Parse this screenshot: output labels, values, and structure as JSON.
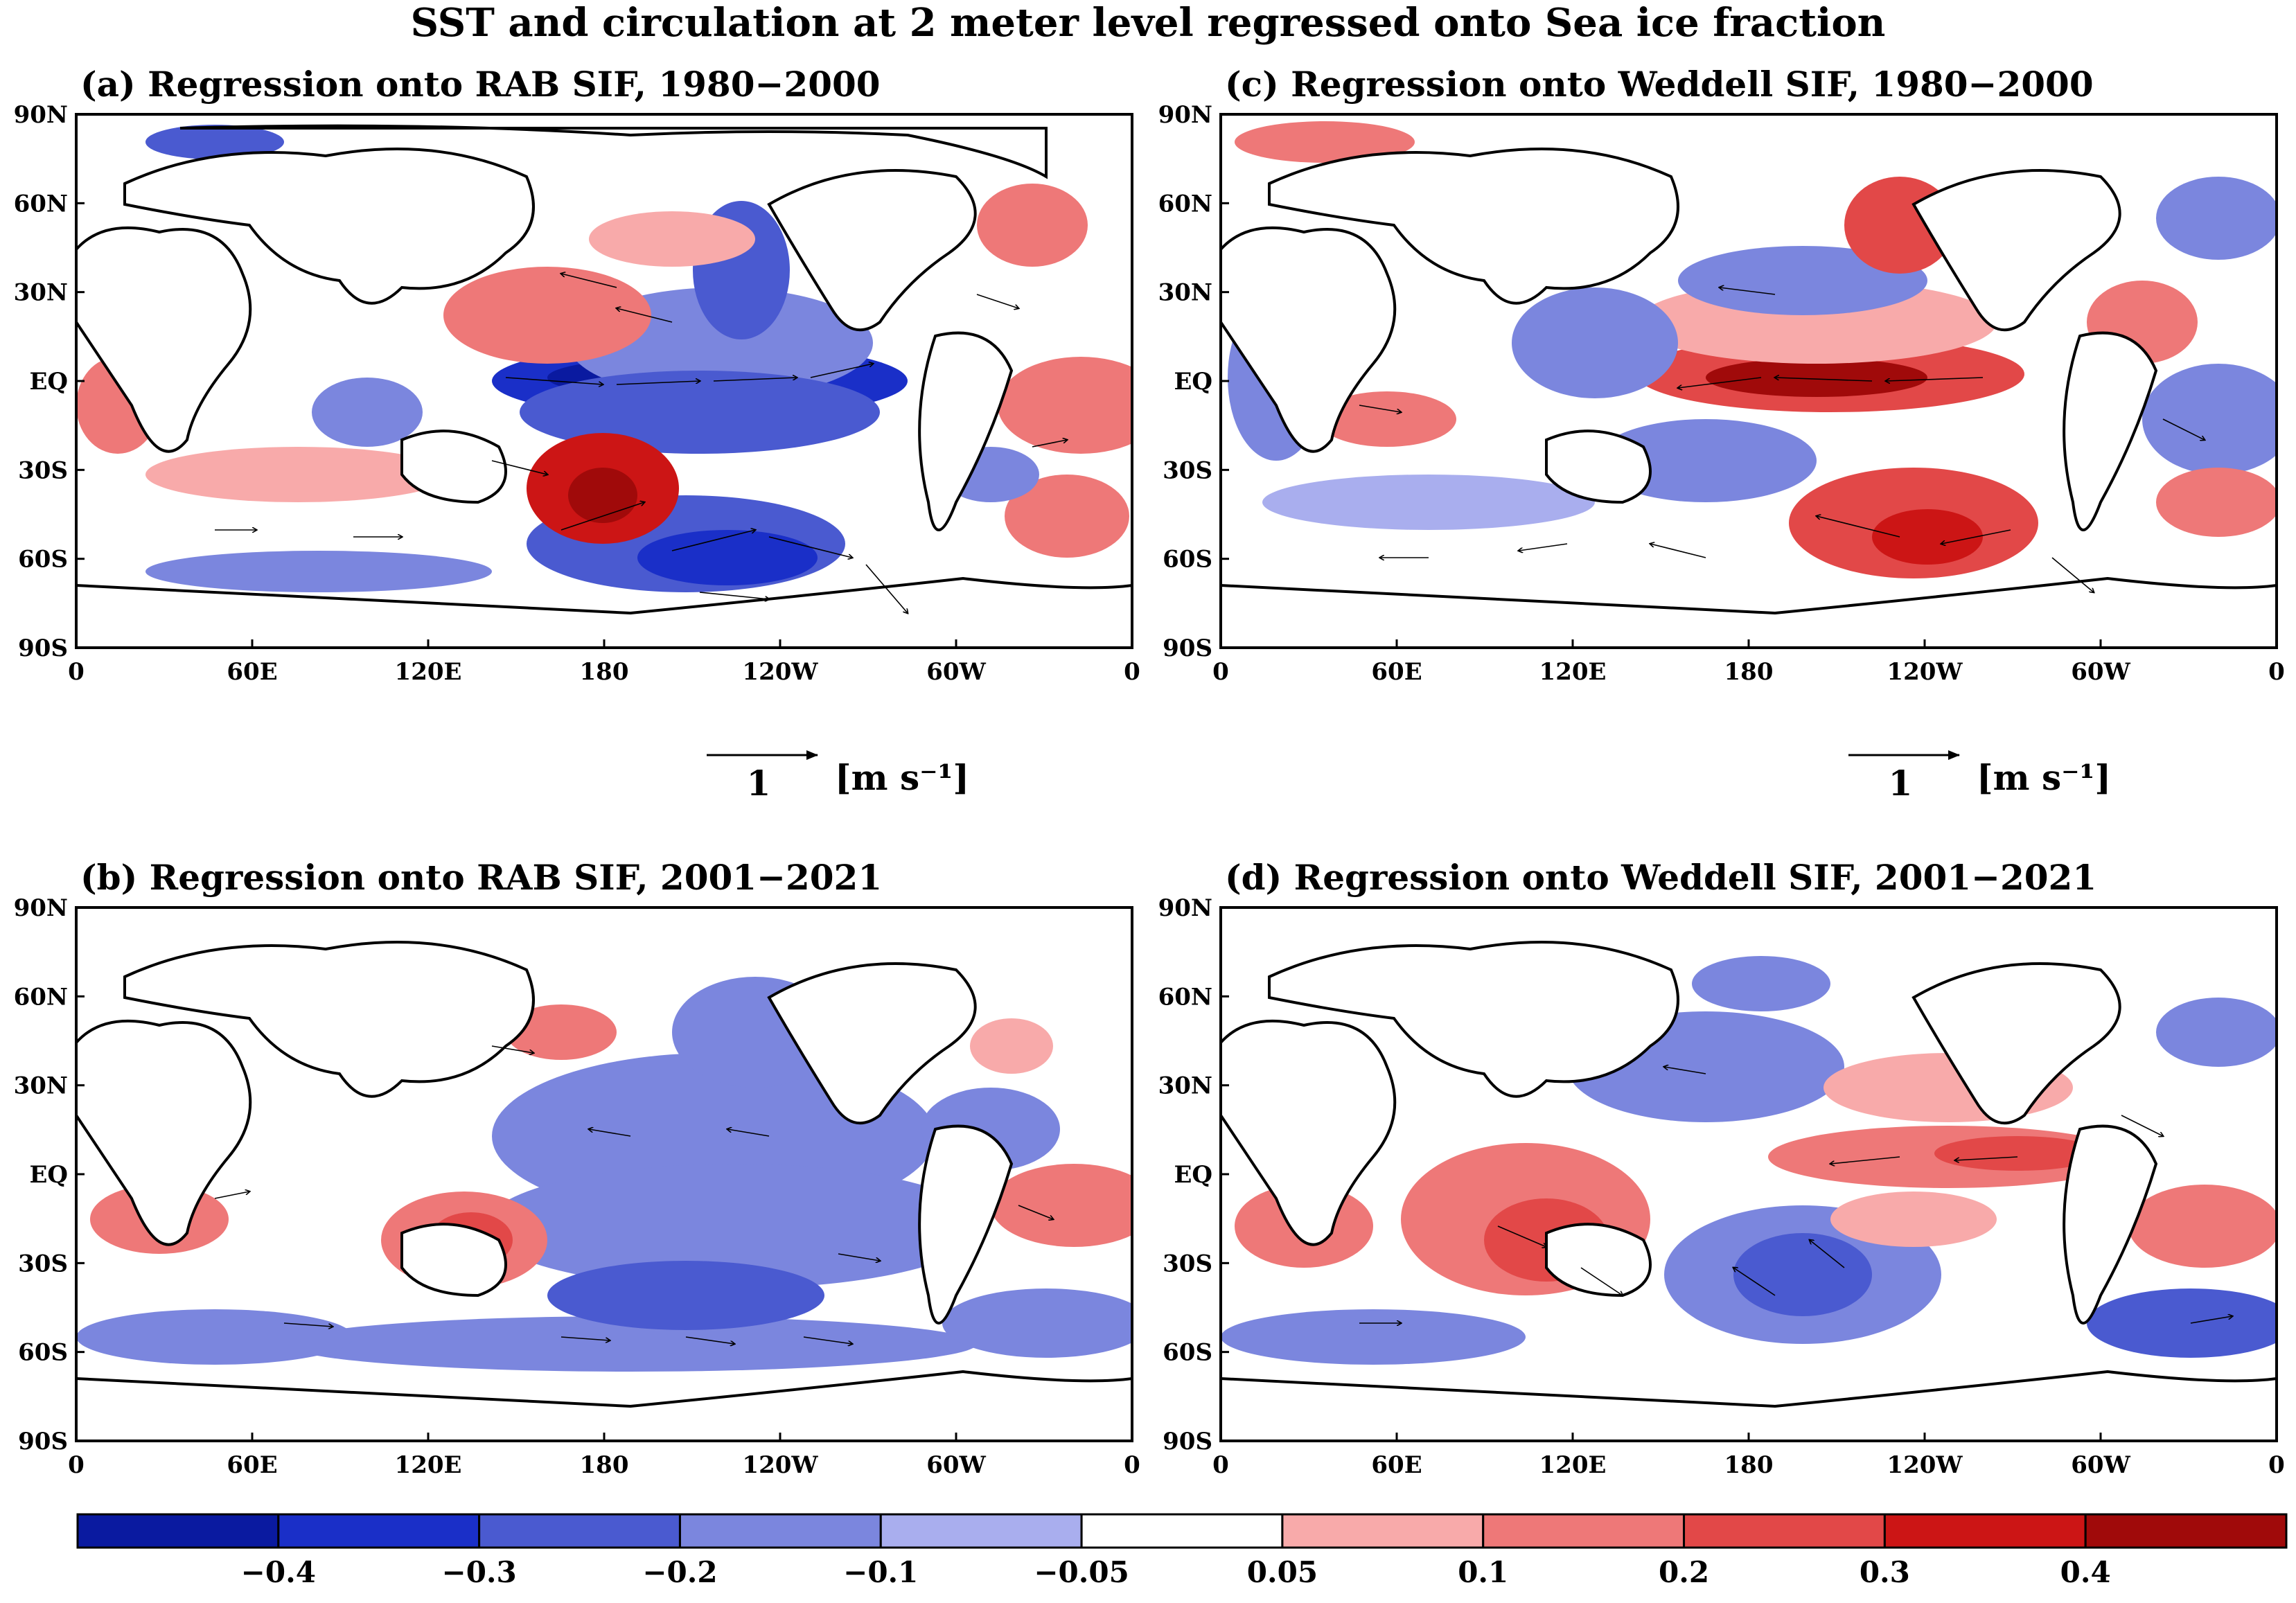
{
  "figure": {
    "title": "SST and circulation at 2 meter level regressed onto Sea ice fraction",
    "lon_ticks": [
      "0",
      "60E",
      "120E",
      "180",
      "120W",
      "60W",
      "0"
    ],
    "lat_ticks": [
      "90N",
      "60N",
      "30N",
      "EQ",
      "30S",
      "60S",
      "90S"
    ],
    "reference_vector": {
      "value": "1",
      "unit": "[m s⁻¹]"
    },
    "colorbar": {
      "tick_labels": [
        "−0.4",
        "−0.3",
        "−0.2",
        "−0.1",
        "−0.05",
        "0.05",
        "0.1",
        "0.2",
        "0.3",
        "0.4"
      ],
      "colors": [
        "#0a1aa0",
        "#1a2fc8",
        "#4a5ad0",
        "#7b86de",
        "#a9aeee",
        "#ffffff",
        "#f8aaaa",
        "#ee7878",
        "#e24848",
        "#cc1515",
        "#a00a0a"
      ]
    },
    "panels": [
      {
        "key": "a",
        "label": "(a) Regression onto RAB SIF, 1980−2000"
      },
      {
        "key": "c",
        "label": "(c) Regression onto Weddell SIF, 1980−2000"
      },
      {
        "key": "b",
        "label": "(b) Regression onto RAB SIF, 2001−2021"
      },
      {
        "key": "d",
        "label": "(d) Regression onto Weddell SIF, 2001−2021"
      }
    ]
  }
}
